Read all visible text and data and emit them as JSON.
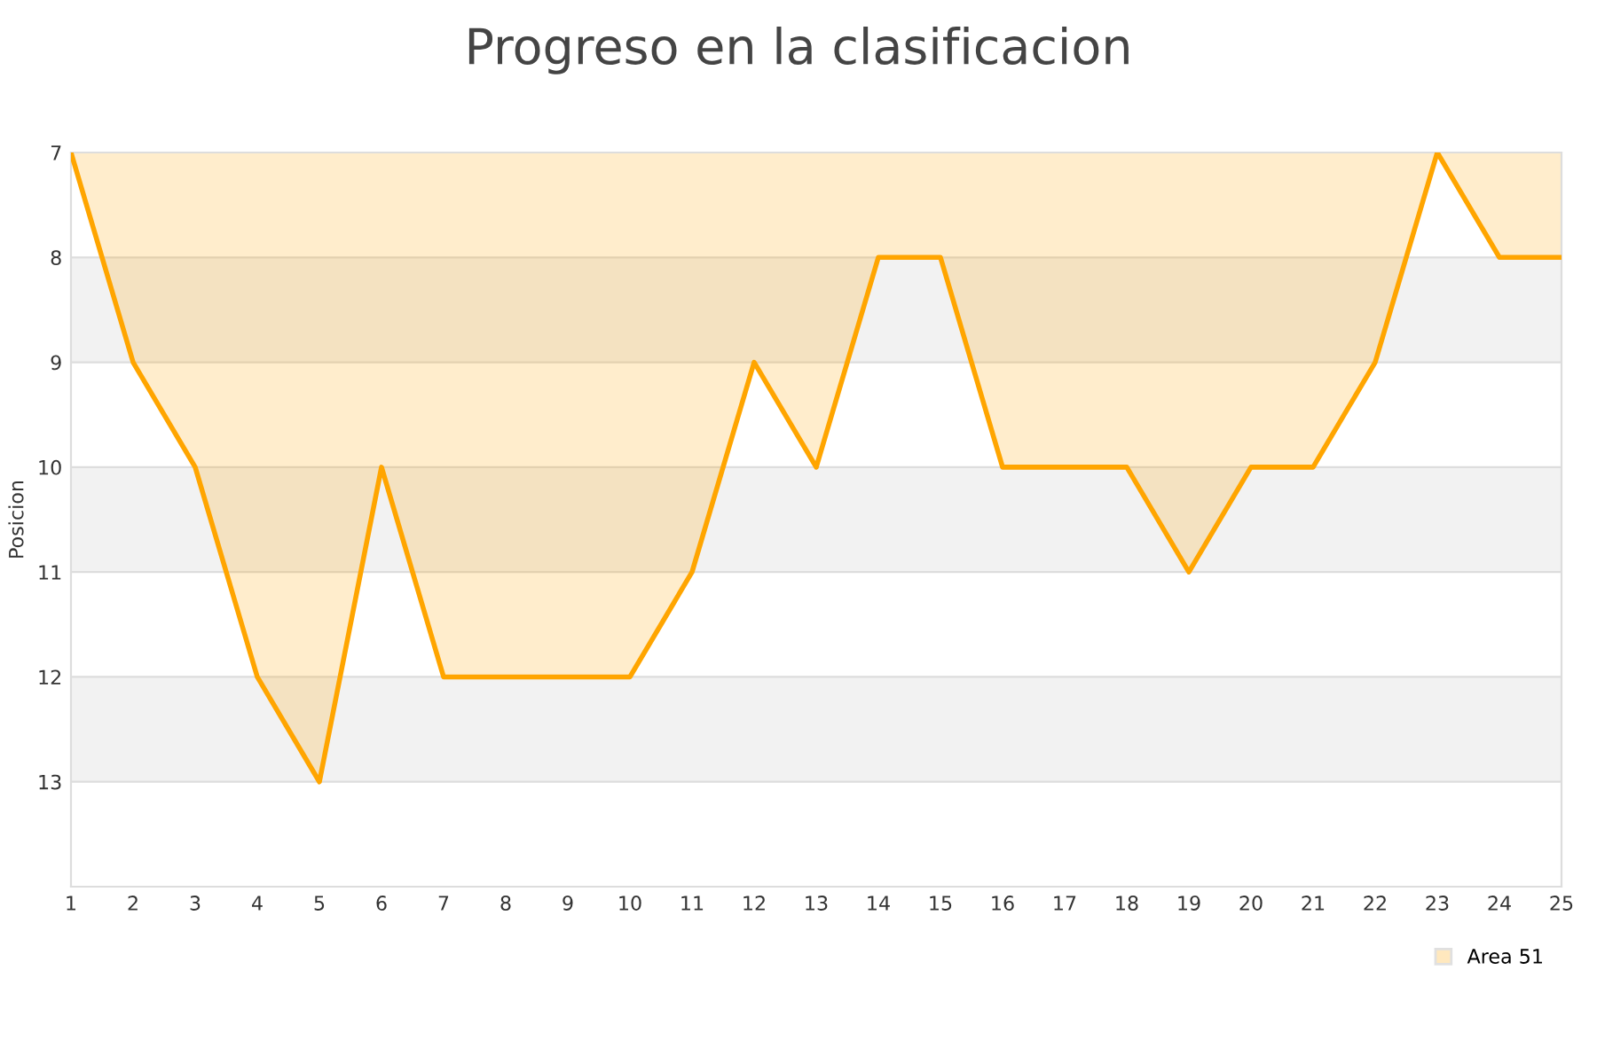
{
  "chart_data": {
    "type": "area",
    "title": "Progreso en la clasificacion",
    "ylabel": "Posicion",
    "x": [
      1,
      2,
      3,
      4,
      5,
      6,
      7,
      8,
      9,
      10,
      11,
      12,
      13,
      14,
      15,
      16,
      17,
      18,
      19,
      20,
      21,
      22,
      23,
      24,
      25
    ],
    "series": [
      {
        "name": "Area 51",
        "color": "#ffa500",
        "values": [
          7,
          9,
          10,
          12,
          13,
          10,
          12,
          12,
          12,
          12,
          11,
          9,
          10,
          8,
          8,
          10,
          10,
          10,
          11,
          10,
          10,
          9,
          7,
          8,
          8
        ]
      }
    ],
    "xlim": [
      1,
      25
    ],
    "xticks": [
      1,
      2,
      3,
      4,
      5,
      6,
      7,
      8,
      9,
      10,
      11,
      12,
      13,
      14,
      15,
      16,
      17,
      18,
      19,
      20,
      21,
      22,
      23,
      24,
      25
    ],
    "ylim": [
      14,
      7
    ],
    "yticks": [
      7,
      8,
      9,
      10,
      11,
      12,
      13
    ],
    "bands": [
      {
        "axis": "y",
        "from": 8,
        "to": 9,
        "color": "#f2f2f2"
      },
      {
        "axis": "y",
        "from": 10,
        "to": 11,
        "color": "#f2f2f2"
      },
      {
        "axis": "y",
        "from": 12,
        "to": 13,
        "color": "#f2f2f2"
      }
    ],
    "grid": "y",
    "legend": "bottom right"
  }
}
